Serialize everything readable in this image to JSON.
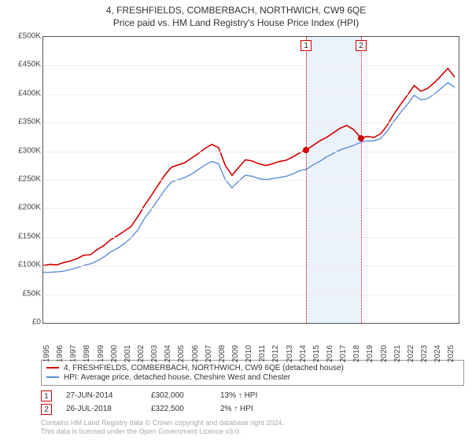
{
  "titles": {
    "line1": "4, FRESHFIELDS, COMBERBACH, NORTHWICH, CW9 6QE",
    "line2": "Price paid vs. HM Land Registry's House Price Index (HPI)"
  },
  "chart": {
    "type": "line",
    "background_color": "#ffffff",
    "grid_color": "#eeeeee",
    "border_color": "#555555",
    "x": {
      "min": 1995,
      "max": 2025.8,
      "ticks": [
        1995,
        1996,
        1997,
        1998,
        1999,
        2000,
        2001,
        2002,
        2003,
        2004,
        2005,
        2006,
        2007,
        2008,
        2009,
        2010,
        2011,
        2012,
        2013,
        2014,
        2015,
        2016,
        2017,
        2018,
        2019,
        2020,
        2021,
        2022,
        2023,
        2024,
        2025
      ],
      "tick_labels": [
        "1995",
        "1996",
        "1997",
        "1998",
        "1999",
        "2000",
        "2001",
        "2002",
        "2003",
        "2004",
        "2005",
        "2006",
        "2007",
        "2008",
        "2009",
        "2010",
        "2011",
        "2012",
        "2013",
        "2014",
        "2015",
        "2016",
        "2017",
        "2018",
        "2019",
        "2020",
        "2021",
        "2022",
        "2023",
        "2024",
        "2025"
      ]
    },
    "y": {
      "min": 0,
      "max": 500000,
      "ticks": [
        0,
        50000,
        100000,
        150000,
        200000,
        250000,
        300000,
        350000,
        400000,
        450000,
        500000
      ],
      "tick_labels": [
        "£0",
        "£50K",
        "£100K",
        "£150K",
        "£200K",
        "£250K",
        "£300K",
        "£350K",
        "£400K",
        "£450K",
        "£500K"
      ]
    },
    "shaded_band": {
      "x_from": 2014.49,
      "x_to": 2018.57,
      "fill": "#e8f0fa"
    },
    "markers": [
      {
        "n": "1",
        "x": 2014.49,
        "y": 302000,
        "line_color": "#d30000"
      },
      {
        "n": "2",
        "x": 2018.57,
        "y": 322500,
        "line_color": "#d30000"
      }
    ],
    "series": [
      {
        "name": "property",
        "color": "#d30000",
        "width": 1.6,
        "points": [
          [
            1995.0,
            100000
          ],
          [
            1995.5,
            102000
          ],
          [
            1996.0,
            101000
          ],
          [
            1996.5,
            105000
          ],
          [
            1997.0,
            108000
          ],
          [
            1997.5,
            112000
          ],
          [
            1998.0,
            118000
          ],
          [
            1998.5,
            119000
          ],
          [
            1999.0,
            128000
          ],
          [
            1999.5,
            135000
          ],
          [
            2000.0,
            145000
          ],
          [
            2000.5,
            152000
          ],
          [
            2001.0,
            160000
          ],
          [
            2001.5,
            168000
          ],
          [
            2002.0,
            185000
          ],
          [
            2002.5,
            205000
          ],
          [
            2003.0,
            222000
          ],
          [
            2003.5,
            240000
          ],
          [
            2004.0,
            258000
          ],
          [
            2004.5,
            272000
          ],
          [
            2005.0,
            276000
          ],
          [
            2005.5,
            280000
          ],
          [
            2006.0,
            288000
          ],
          [
            2006.5,
            296000
          ],
          [
            2007.0,
            305000
          ],
          [
            2007.5,
            312000
          ],
          [
            2008.0,
            306000
          ],
          [
            2008.5,
            275000
          ],
          [
            2009.0,
            258000
          ],
          [
            2009.5,
            272000
          ],
          [
            2010.0,
            285000
          ],
          [
            2010.5,
            283000
          ],
          [
            2011.0,
            278000
          ],
          [
            2011.5,
            275000
          ],
          [
            2012.0,
            278000
          ],
          [
            2012.5,
            282000
          ],
          [
            2013.0,
            284000
          ],
          [
            2013.5,
            290000
          ],
          [
            2014.0,
            297000
          ],
          [
            2014.49,
            302000
          ],
          [
            2015.0,
            310000
          ],
          [
            2015.5,
            318000
          ],
          [
            2016.0,
            324000
          ],
          [
            2016.5,
            332000
          ],
          [
            2017.0,
            340000
          ],
          [
            2017.5,
            345000
          ],
          [
            2018.0,
            338000
          ],
          [
            2018.57,
            322500
          ],
          [
            2019.0,
            326000
          ],
          [
            2019.5,
            324000
          ],
          [
            2020.0,
            330000
          ],
          [
            2020.5,
            345000
          ],
          [
            2021.0,
            365000
          ],
          [
            2021.5,
            382000
          ],
          [
            2022.0,
            398000
          ],
          [
            2022.5,
            415000
          ],
          [
            2023.0,
            405000
          ],
          [
            2023.5,
            410000
          ],
          [
            2024.0,
            420000
          ],
          [
            2024.5,
            432000
          ],
          [
            2025.0,
            445000
          ],
          [
            2025.5,
            430000
          ]
        ]
      },
      {
        "name": "hpi",
        "color": "#5b8fd6",
        "width": 1.4,
        "points": [
          [
            1995.0,
            88000
          ],
          [
            1995.5,
            88000
          ],
          [
            1996.0,
            89000
          ],
          [
            1996.5,
            90000
          ],
          [
            1997.0,
            93000
          ],
          [
            1997.5,
            96000
          ],
          [
            1998.0,
            100000
          ],
          [
            1998.5,
            103000
          ],
          [
            1999.0,
            108000
          ],
          [
            1999.5,
            115000
          ],
          [
            2000.0,
            124000
          ],
          [
            2000.5,
            130000
          ],
          [
            2001.0,
            138000
          ],
          [
            2001.5,
            148000
          ],
          [
            2002.0,
            162000
          ],
          [
            2002.5,
            182000
          ],
          [
            2003.0,
            198000
          ],
          [
            2003.5,
            215000
          ],
          [
            2004.0,
            232000
          ],
          [
            2004.5,
            246000
          ],
          [
            2005.0,
            250000
          ],
          [
            2005.5,
            254000
          ],
          [
            2006.0,
            260000
          ],
          [
            2006.5,
            268000
          ],
          [
            2007.0,
            276000
          ],
          [
            2007.5,
            282000
          ],
          [
            2008.0,
            278000
          ],
          [
            2008.5,
            250000
          ],
          [
            2009.0,
            236000
          ],
          [
            2009.5,
            248000
          ],
          [
            2010.0,
            258000
          ],
          [
            2010.5,
            256000
          ],
          [
            2011.0,
            252000
          ],
          [
            2011.5,
            250000
          ],
          [
            2012.0,
            252000
          ],
          [
            2012.5,
            254000
          ],
          [
            2013.0,
            256000
          ],
          [
            2013.5,
            260000
          ],
          [
            2014.0,
            266000
          ],
          [
            2014.49,
            268000
          ],
          [
            2015.0,
            276000
          ],
          [
            2015.5,
            282000
          ],
          [
            2016.0,
            290000
          ],
          [
            2016.5,
            296000
          ],
          [
            2017.0,
            302000
          ],
          [
            2017.5,
            306000
          ],
          [
            2018.0,
            310000
          ],
          [
            2018.57,
            316000
          ],
          [
            2019.0,
            318000
          ],
          [
            2019.5,
            318000
          ],
          [
            2020.0,
            322000
          ],
          [
            2020.5,
            335000
          ],
          [
            2021.0,
            352000
          ],
          [
            2021.5,
            368000
          ],
          [
            2022.0,
            382000
          ],
          [
            2022.5,
            398000
          ],
          [
            2023.0,
            390000
          ],
          [
            2023.5,
            392000
          ],
          [
            2024.0,
            400000
          ],
          [
            2024.5,
            410000
          ],
          [
            2025.0,
            420000
          ],
          [
            2025.5,
            412000
          ]
        ]
      }
    ]
  },
  "legend": {
    "items": [
      {
        "color": "#d30000",
        "label": "4, FRESHFIELDS, COMBERBACH, NORTHWICH, CW9 6QE (detached house)"
      },
      {
        "color": "#5b8fd6",
        "label": "HPI: Average price, detached house, Cheshire West and Chester"
      }
    ]
  },
  "sales": [
    {
      "n": "1",
      "date": "27-JUN-2014",
      "price": "£302,000",
      "pct": "13% ↑ HPI"
    },
    {
      "n": "2",
      "date": "26-JUL-2018",
      "price": "£322,500",
      "pct": "2% ↑ HPI"
    }
  ],
  "footer": {
    "line1": "Contains HM Land Registry data © Crown copyright and database right 2024.",
    "line2": "This data is licensed under the Open Government Licence v3.0."
  }
}
